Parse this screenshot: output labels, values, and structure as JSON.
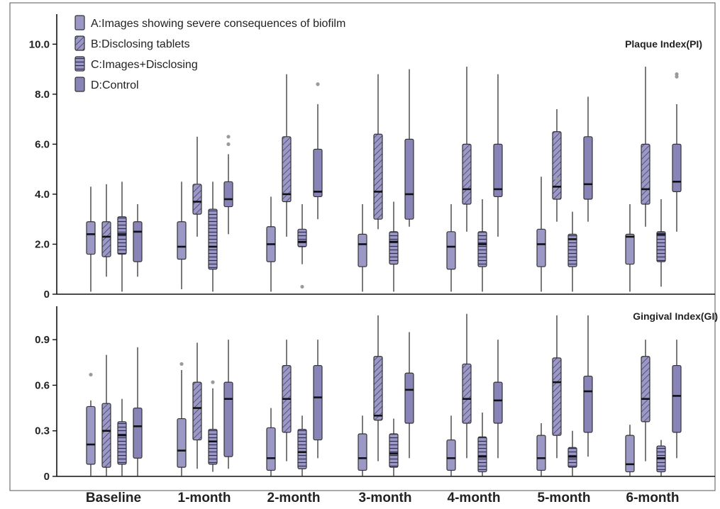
{
  "colors": {
    "box_fill": "#9c98c6",
    "box_fill_dark": "#8884b8",
    "stroke": "#333333",
    "outlier": "#9a9a9a",
    "axis": "#111111"
  },
  "chart_data": [
    {
      "type": "boxplot",
      "title": "Plaque Index(PI)",
      "categories": [
        "Baseline",
        "1-month",
        "2-month",
        "3-month",
        "4-month",
        "5-month",
        "6-month"
      ],
      "ylim": [
        0,
        11.2
      ],
      "yticks": [
        0,
        2.0,
        4.0,
        6.0,
        8.0,
        10.0
      ],
      "ytick_labels": [
        "0",
        "2.0",
        "4.0",
        "6.0",
        "8.0",
        "10.0"
      ],
      "legend_position": "top-left",
      "series": [
        {
          "name": "A:Images showing severe consequences of biofilm",
          "pattern": "plain",
          "boxes": [
            {
              "min": 0.1,
              "q1": 1.6,
              "median": 2.4,
              "q3": 2.9,
              "max": 4.3,
              "outliers": []
            },
            {
              "min": 0.2,
              "q1": 1.4,
              "median": 1.9,
              "q3": 2.9,
              "max": 4.5,
              "outliers": []
            },
            {
              "min": 0.1,
              "q1": 1.3,
              "median": 2.0,
              "q3": 2.7,
              "max": 3.9,
              "outliers": []
            },
            {
              "min": 0.1,
              "q1": 1.1,
              "median": 2.0,
              "q3": 2.4,
              "max": 3.6,
              "outliers": []
            },
            {
              "min": 0.1,
              "q1": 1.0,
              "median": 1.9,
              "q3": 2.5,
              "max": 3.6,
              "outliers": []
            },
            {
              "min": 0.1,
              "q1": 1.1,
              "median": 2.0,
              "q3": 2.6,
              "max": 4.7,
              "outliers": []
            },
            {
              "min": 0.1,
              "q1": 1.2,
              "median": 2.3,
              "q3": 2.4,
              "max": 3.6,
              "outliers": []
            }
          ]
        },
        {
          "name": "B:Disclosing tablets",
          "pattern": "diagonal",
          "boxes": [
            {
              "min": 0.7,
              "q1": 1.5,
              "median": 2.3,
              "q3": 2.9,
              "max": 4.4,
              "outliers": []
            },
            {
              "min": 2.3,
              "q1": 3.2,
              "median": 3.7,
              "q3": 4.4,
              "max": 6.3,
              "outliers": []
            },
            {
              "min": 2.3,
              "q1": 3.7,
              "median": 4.0,
              "q3": 6.3,
              "max": 8.8,
              "outliers": []
            },
            {
              "min": 2.6,
              "q1": 3.0,
              "median": 4.1,
              "q3": 6.4,
              "max": 8.8,
              "outliers": []
            },
            {
              "min": 2.5,
              "q1": 3.6,
              "median": 4.2,
              "q3": 6.0,
              "max": 9.1,
              "outliers": []
            },
            {
              "min": 2.9,
              "q1": 3.8,
              "median": 4.3,
              "q3": 6.5,
              "max": 7.4,
              "outliers": [
                4.6
              ]
            },
            {
              "min": 2.7,
              "q1": 3.6,
              "median": 4.2,
              "q3": 6.0,
              "max": 9.1,
              "outliers": []
            }
          ]
        },
        {
          "name": "C:Images+Disclosing",
          "pattern": "horizontal",
          "boxes": [
            {
              "min": 0.1,
              "q1": 1.6,
              "median": 2.4,
              "q3": 3.1,
              "max": 4.5,
              "outliers": []
            },
            {
              "min": 0.1,
              "q1": 1.0,
              "median": 1.9,
              "q3": 3.4,
              "max": 4.5,
              "outliers": []
            },
            {
              "min": 1.2,
              "q1": 1.9,
              "median": 2.1,
              "q3": 2.6,
              "max": 3.6,
              "outliers": [
                0.3
              ]
            },
            {
              "min": 0.1,
              "q1": 1.2,
              "median": 2.1,
              "q3": 2.5,
              "max": 3.7,
              "outliers": []
            },
            {
              "min": 0.1,
              "q1": 1.1,
              "median": 2.0,
              "q3": 2.5,
              "max": 3.8,
              "outliers": []
            },
            {
              "min": 0.1,
              "q1": 1.1,
              "median": 2.2,
              "q3": 2.4,
              "max": 3.3,
              "outliers": []
            },
            {
              "min": 0.3,
              "q1": 1.3,
              "median": 2.4,
              "q3": 2.5,
              "max": 3.8,
              "outliers": []
            }
          ]
        },
        {
          "name": "D:Control",
          "pattern": "dark",
          "boxes": [
            {
              "min": 0.7,
              "q1": 1.3,
              "median": 2.5,
              "q3": 2.9,
              "max": 3.6,
              "outliers": []
            },
            {
              "min": 2.4,
              "q1": 3.5,
              "median": 3.8,
              "q3": 4.5,
              "max": 5.6,
              "outliers": [
                6.0,
                6.3
              ]
            },
            {
              "min": 3.0,
              "q1": 3.9,
              "median": 4.1,
              "q3": 5.8,
              "max": 7.6,
              "outliers": [
                8.4
              ]
            },
            {
              "min": 2.7,
              "q1": 3.0,
              "median": 4.0,
              "q3": 6.2,
              "max": 9.0,
              "outliers": []
            },
            {
              "min": 2.3,
              "q1": 3.9,
              "median": 4.2,
              "q3": 6.0,
              "max": 8.8,
              "outliers": []
            },
            {
              "min": 2.9,
              "q1": 3.8,
              "median": 4.4,
              "q3": 6.3,
              "max": 7.9,
              "outliers": []
            },
            {
              "min": 2.5,
              "q1": 4.1,
              "median": 4.5,
              "q3": 6.0,
              "max": 7.6,
              "outliers": [
                8.7,
                8.8
              ]
            }
          ]
        }
      ]
    },
    {
      "type": "boxplot",
      "title": "Gingival Index(GI)",
      "categories": [
        "Baseline",
        "1-month",
        "2-month",
        "3-month",
        "4-month",
        "5-month",
        "6-month"
      ],
      "ylim": [
        0,
        1.12
      ],
      "yticks": [
        0,
        0.3,
        0.6,
        0.9
      ],
      "ytick_labels": [
        "0",
        "0.3",
        "0.6",
        "0.9"
      ],
      "series": [
        {
          "name": "A:Images showing severe consequences of biofilm",
          "pattern": "plain",
          "boxes": [
            {
              "min": 0.0,
              "q1": 0.08,
              "median": 0.21,
              "q3": 0.46,
              "max": 0.5,
              "outliers": [
                0.67
              ]
            },
            {
              "min": 0.0,
              "q1": 0.06,
              "median": 0.17,
              "q3": 0.38,
              "max": 0.7,
              "outliers": [
                0.74
              ]
            },
            {
              "min": 0.0,
              "q1": 0.04,
              "median": 0.12,
              "q3": 0.32,
              "max": 0.45,
              "outliers": []
            },
            {
              "min": 0.0,
              "q1": 0.04,
              "median": 0.12,
              "q3": 0.28,
              "max": 0.4,
              "outliers": []
            },
            {
              "min": 0.0,
              "q1": 0.04,
              "median": 0.12,
              "q3": 0.24,
              "max": 0.4,
              "outliers": []
            },
            {
              "min": 0.0,
              "q1": 0.04,
              "median": 0.12,
              "q3": 0.27,
              "max": 0.35,
              "outliers": []
            },
            {
              "min": 0.0,
              "q1": 0.03,
              "median": 0.08,
              "q3": 0.27,
              "max": 0.34,
              "outliers": []
            }
          ]
        },
        {
          "name": "B:Disclosing tablets",
          "pattern": "diagonal",
          "boxes": [
            {
              "min": 0.0,
              "q1": 0.06,
              "median": 0.3,
              "q3": 0.48,
              "max": 0.8,
              "outliers": []
            },
            {
              "min": 0.05,
              "q1": 0.24,
              "median": 0.45,
              "q3": 0.62,
              "max": 0.88,
              "outliers": []
            },
            {
              "min": 0.1,
              "q1": 0.29,
              "median": 0.51,
              "q3": 0.73,
              "max": 0.9,
              "outliers": []
            },
            {
              "min": 0.1,
              "q1": 0.37,
              "median": 0.4,
              "q3": 0.79,
              "max": 1.06,
              "outliers": []
            },
            {
              "min": 0.12,
              "q1": 0.35,
              "median": 0.51,
              "q3": 0.74,
              "max": 1.07,
              "outliers": []
            },
            {
              "min": 0.12,
              "q1": 0.27,
              "median": 0.62,
              "q3": 0.78,
              "max": 1.06,
              "outliers": []
            },
            {
              "min": 0.1,
              "q1": 0.36,
              "median": 0.51,
              "q3": 0.79,
              "max": 0.9,
              "outliers": []
            }
          ]
        },
        {
          "name": "C:Images+Disclosing",
          "pattern": "horizontal",
          "boxes": [
            {
              "min": 0.0,
              "q1": 0.08,
              "median": 0.27,
              "q3": 0.36,
              "max": 0.51,
              "outliers": []
            },
            {
              "min": 0.03,
              "q1": 0.08,
              "median": 0.23,
              "q3": 0.31,
              "max": 0.58,
              "outliers": [
                0.62
              ]
            },
            {
              "min": 0.0,
              "q1": 0.05,
              "median": 0.16,
              "q3": 0.31,
              "max": 0.4,
              "outliers": []
            },
            {
              "min": 0.0,
              "q1": 0.06,
              "median": 0.15,
              "q3": 0.28,
              "max": 0.38,
              "outliers": []
            },
            {
              "min": 0.0,
              "q1": 0.03,
              "median": 0.13,
              "q3": 0.26,
              "max": 0.42,
              "outliers": []
            },
            {
              "min": 0.0,
              "q1": 0.06,
              "median": 0.13,
              "q3": 0.19,
              "max": 0.3,
              "outliers": []
            },
            {
              "min": 0.0,
              "q1": 0.03,
              "median": 0.12,
              "q3": 0.2,
              "max": 0.24,
              "outliers": []
            }
          ]
        },
        {
          "name": "D:Control",
          "pattern": "dark",
          "boxes": [
            {
              "min": 0.0,
              "q1": 0.12,
              "median": 0.33,
              "q3": 0.45,
              "max": 0.85,
              "outliers": []
            },
            {
              "min": 0.05,
              "q1": 0.13,
              "median": 0.51,
              "q3": 0.62,
              "max": 0.9,
              "outliers": []
            },
            {
              "min": 0.12,
              "q1": 0.24,
              "median": 0.52,
              "q3": 0.73,
              "max": 0.9,
              "outliers": []
            },
            {
              "min": 0.12,
              "q1": 0.35,
              "median": 0.57,
              "q3": 0.68,
              "max": 0.95,
              "outliers": []
            },
            {
              "min": 0.12,
              "q1": 0.35,
              "median": 0.5,
              "q3": 0.62,
              "max": 0.9,
              "outliers": []
            },
            {
              "min": 0.13,
              "q1": 0.29,
              "median": 0.56,
              "q3": 0.66,
              "max": 1.06,
              "outliers": []
            },
            {
              "min": 0.12,
              "q1": 0.29,
              "median": 0.53,
              "q3": 0.73,
              "max": 0.9,
              "outliers": []
            }
          ]
        }
      ]
    }
  ]
}
